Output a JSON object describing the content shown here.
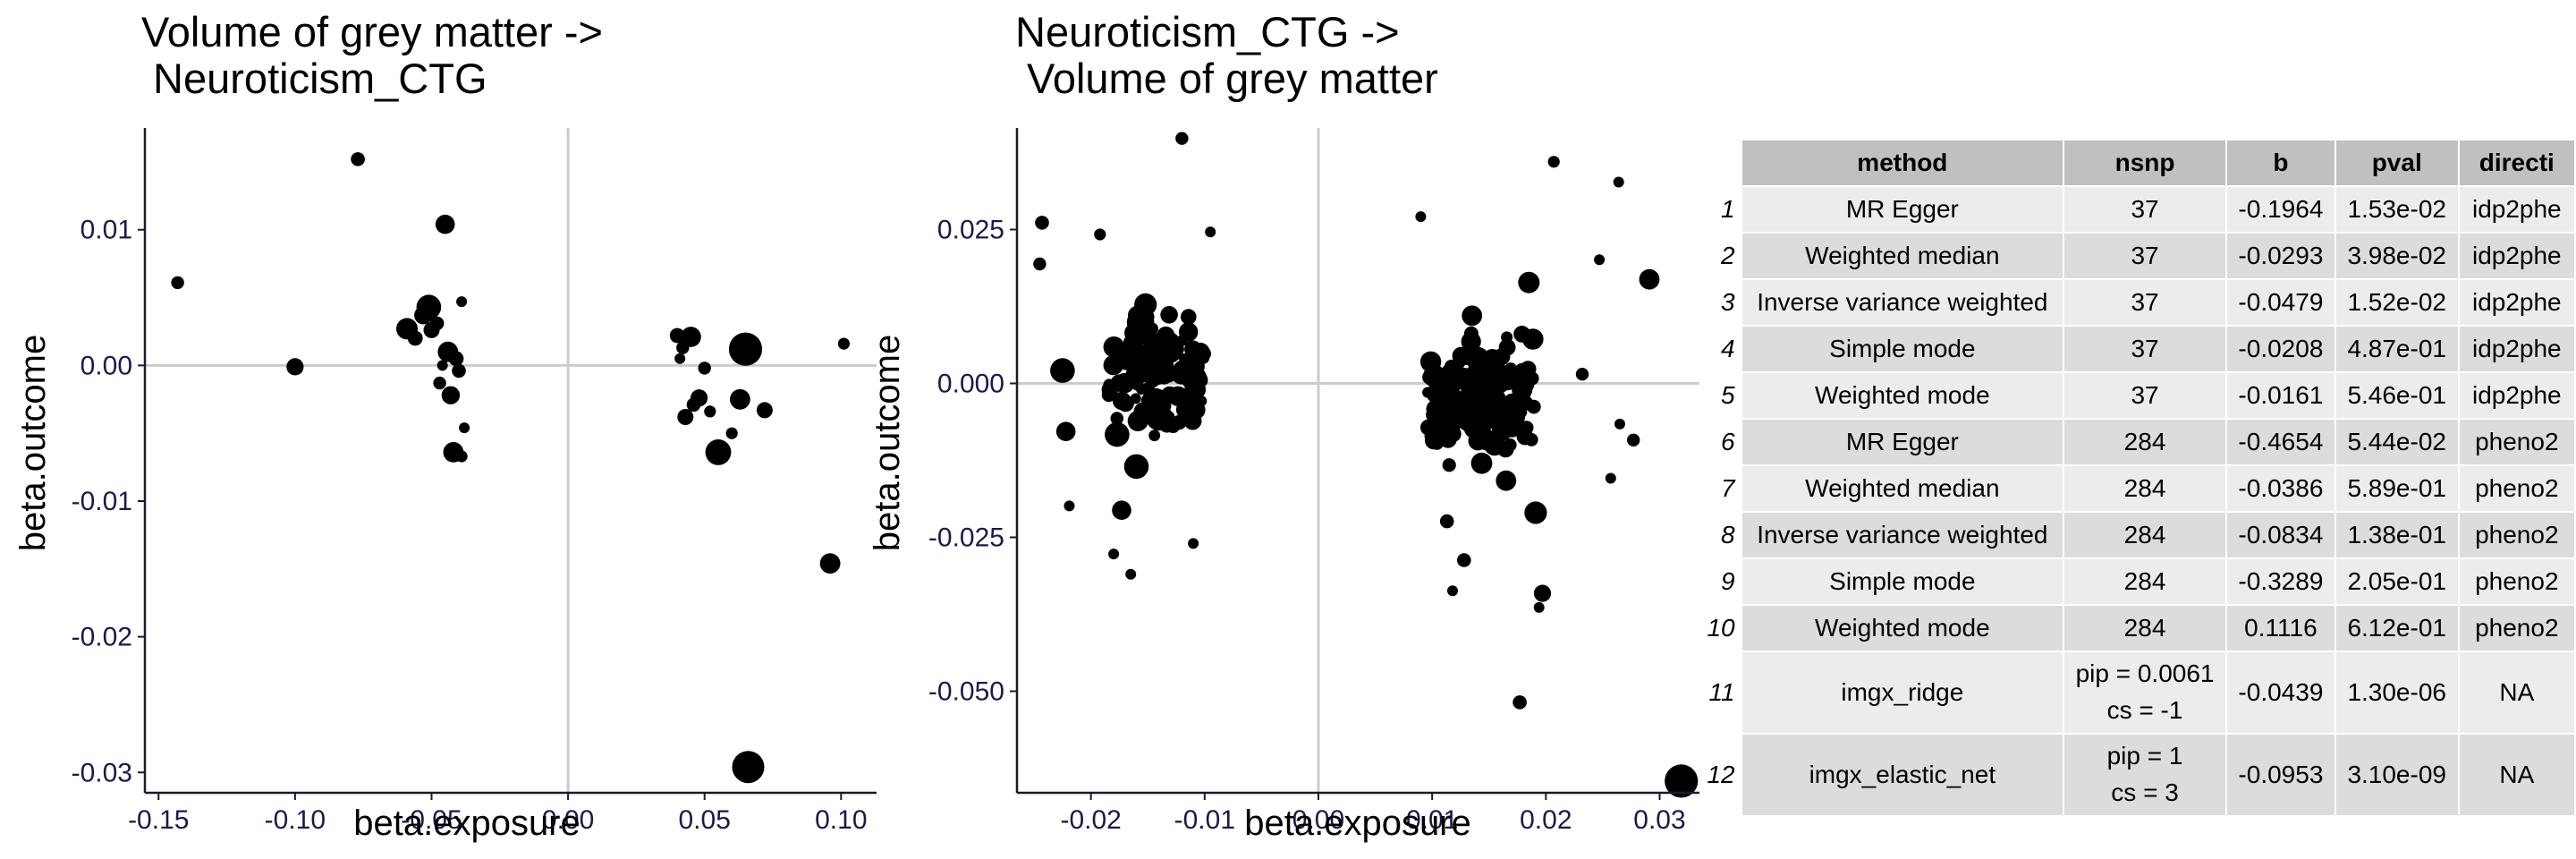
{
  "chart_data": [
    {
      "type": "scatter",
      "title_line1": "Volume of grey matter ->",
      "title_line2": " Neuroticism_CTG",
      "xlabel": "beta.exposure",
      "ylabel": "beta.outcome",
      "xlim": [
        -0.155,
        0.113
      ],
      "ylim": [
        -0.0315,
        0.0175
      ],
      "xticks": [
        -0.15,
        -0.1,
        -0.05,
        0.0,
        0.05,
        0.1
      ],
      "xtick_labels": [
        "-0.15",
        "-0.10",
        "-0.05",
        "0.00",
        "0.05",
        "0.10"
      ],
      "yticks": [
        0.01,
        0.0,
        -0.01,
        -0.02,
        -0.03
      ],
      "ytick_labels": [
        "0.01",
        "0.00",
        "-0.01",
        "-0.02",
        "-0.03"
      ],
      "reference_lines": {
        "x": 0,
        "y": 0
      },
      "point_size_meaning": "point size scales with precision",
      "points": [
        [
          -0.143,
          0.0061,
          1.2
        ],
        [
          -0.1,
          -0.0001,
          1.6
        ],
        [
          -0.077,
          0.0152,
          1.3
        ],
        [
          -0.059,
          0.0027,
          2.0
        ],
        [
          -0.056,
          0.002,
          1.4
        ],
        [
          -0.053,
          0.0037,
          1.7
        ],
        [
          -0.051,
          0.0043,
          2.3
        ],
        [
          -0.048,
          0.0031,
          1.3
        ],
        [
          -0.047,
          -0.0013,
          1.2
        ],
        [
          -0.045,
          0.0104,
          1.8
        ],
        [
          -0.044,
          0.001,
          1.9
        ],
        [
          -0.043,
          -0.0022,
          1.7
        ],
        [
          -0.042,
          -0.0064,
          1.9
        ],
        [
          -0.041,
          0.0005,
          1.4
        ],
        [
          -0.04,
          -0.0004,
          1.3
        ],
        [
          -0.039,
          -0.0067,
          1.1
        ],
        [
          -0.039,
          0.0047,
          1.0
        ],
        [
          -0.038,
          -0.0046,
          1.0
        ],
        [
          0.04,
          0.0022,
          1.4
        ],
        [
          0.042,
          0.0013,
          1.2
        ],
        [
          0.043,
          -0.0038,
          1.5
        ],
        [
          0.045,
          0.0021,
          1.9
        ],
        [
          0.046,
          -0.0029,
          1.3
        ],
        [
          0.048,
          -0.0024,
          1.6
        ],
        [
          0.05,
          -0.0002,
          1.2
        ],
        [
          0.052,
          -0.0034,
          1.1
        ],
        [
          0.055,
          -0.0064,
          2.4
        ],
        [
          0.06,
          -0.005,
          1.1
        ],
        [
          0.063,
          -0.0025,
          1.9
        ],
        [
          0.065,
          0.0012,
          3.1
        ],
        [
          0.066,
          -0.0296,
          3.0
        ],
        [
          0.072,
          -0.0033,
          1.5
        ],
        [
          0.096,
          -0.0146,
          1.9
        ],
        [
          0.101,
          0.0016,
          1.1
        ],
        [
          0.041,
          0.0005,
          1.0
        ],
        [
          -0.05,
          0.0026,
          1.5
        ],
        [
          -0.046,
          0.0,
          1.0
        ]
      ]
    },
    {
      "type": "scatter",
      "title_line1": "Neuroticism_CTG ->",
      "title_line2": " Volume of grey matter",
      "xlabel": "beta.exposure",
      "ylabel": "beta.outcome",
      "xlim": [
        -0.0265,
        0.0335
      ],
      "ylim": [
        -0.0665,
        0.0415
      ],
      "xticks": [
        -0.02,
        -0.01,
        0.0,
        0.01,
        0.02,
        0.03
      ],
      "xtick_labels": [
        "-0.02",
        "-0.01",
        "0.00",
        "0.01",
        "0.02",
        "0.03"
      ],
      "yticks": [
        0.025,
        0.0,
        -0.025,
        -0.05
      ],
      "ytick_labels": [
        "0.025",
        "0.000",
        "-0.025",
        "-0.050"
      ],
      "reference_lines": {
        "x": 0,
        "y": 0
      },
      "point_size_meaning": "point size scales with precision",
      "n_points": 284,
      "points": [
        [
          -0.0243,
          0.0261,
          1.3
        ],
        [
          -0.0245,
          0.0194,
          1.2
        ],
        [
          -0.0225,
          0.0021,
          2.3
        ],
        [
          -0.0219,
          -0.0199,
          1.0
        ],
        [
          -0.0222,
          -0.0078,
          1.8
        ],
        [
          -0.0192,
          0.0242,
          1.1
        ],
        [
          -0.0177,
          -0.0083,
          2.3
        ],
        [
          -0.018,
          -0.0277,
          1.0
        ],
        [
          -0.0165,
          -0.031,
          1.0
        ],
        [
          -0.012,
          0.0398,
          1.2
        ],
        [
          -0.011,
          -0.026,
          1.0
        ],
        [
          -0.0095,
          0.0246,
          1.0
        ],
        [
          -0.0143,
          -0.0027,
          2.2
        ],
        [
          -0.014,
          -0.0055,
          2.5
        ],
        [
          -0.016,
          -0.0135,
          2.3
        ],
        [
          -0.0173,
          -0.0206,
          1.8
        ],
        [
          -0.0152,
          0.0128,
          2.1
        ],
        [
          -0.0131,
          0.0066,
          2.0
        ],
        [
          0.0207,
          0.036,
          1.1
        ],
        [
          0.0264,
          0.0327,
          1.0
        ],
        [
          0.0247,
          0.0201,
          1.0
        ],
        [
          0.0291,
          0.0169,
          1.9
        ],
        [
          0.0319,
          -0.0646,
          3.1
        ],
        [
          0.0177,
          -0.0518,
          1.3
        ],
        [
          0.0197,
          -0.0341,
          1.6
        ],
        [
          0.0194,
          -0.0364,
          1.0
        ],
        [
          0.0191,
          -0.021,
          2.1
        ],
        [
          0.0257,
          -0.0154,
          1.0
        ],
        [
          0.0277,
          -0.0092,
          1.2
        ],
        [
          0.0265,
          -0.0066,
          1.0
        ],
        [
          0.0232,
          0.0015,
          1.2
        ],
        [
          0.017,
          -0.0053,
          2.5
        ],
        [
          0.014,
          0.004,
          2.2
        ],
        [
          0.0113,
          -0.0224,
          1.3
        ],
        [
          0.0128,
          -0.0287,
          1.3
        ],
        [
          0.0118,
          -0.0337,
          1.0
        ],
        [
          0.0185,
          0.0164,
          2.0
        ],
        [
          0.009,
          0.0271,
          1.0
        ],
        [
          0.0102,
          0.0012,
          2.1
        ],
        [
          0.0165,
          -0.0158,
          1.9
        ],
        [
          0.0135,
          0.011,
          1.9
        ],
        [
          0.0155,
          -0.01,
          2.0
        ]
      ]
    }
  ],
  "table": {
    "headers": [
      "method",
      "nsnp",
      "b",
      "pval",
      "directi"
    ],
    "rows": [
      {
        "num": "1",
        "method": "MR Egger",
        "nsnp": "37",
        "b": "-0.1964",
        "pval": "1.53e-02",
        "direction": "idp2phe"
      },
      {
        "num": "2",
        "method": "Weighted median",
        "nsnp": "37",
        "b": "-0.0293",
        "pval": "3.98e-02",
        "direction": "idp2phe"
      },
      {
        "num": "3",
        "method": "Inverse variance weighted",
        "nsnp": "37",
        "b": "-0.0479",
        "pval": "1.52e-02",
        "direction": "idp2phe"
      },
      {
        "num": "4",
        "method": "Simple mode",
        "nsnp": "37",
        "b": "-0.0208",
        "pval": "4.87e-01",
        "direction": "idp2phe"
      },
      {
        "num": "5",
        "method": "Weighted mode",
        "nsnp": "37",
        "b": "-0.0161",
        "pval": "5.46e-01",
        "direction": "idp2phe"
      },
      {
        "num": "6",
        "method": "MR Egger",
        "nsnp": "284",
        "b": "-0.4654",
        "pval": "5.44e-02",
        "direction": "pheno2"
      },
      {
        "num": "7",
        "method": "Weighted median",
        "nsnp": "284",
        "b": "-0.0386",
        "pval": "5.89e-01",
        "direction": "pheno2"
      },
      {
        "num": "8",
        "method": "Inverse variance weighted",
        "nsnp": "284",
        "b": "-0.0834",
        "pval": "1.38e-01",
        "direction": "pheno2"
      },
      {
        "num": "9",
        "method": "Simple mode",
        "nsnp": "284",
        "b": "-0.3289",
        "pval": "2.05e-01",
        "direction": "pheno2"
      },
      {
        "num": "10",
        "method": "Weighted mode",
        "nsnp": "284",
        "b": "0.1116",
        "pval": "6.12e-01",
        "direction": "pheno2"
      },
      {
        "num": "11",
        "method": "imgx_ridge",
        "nsnp_line1": "pip = 0.0061",
        "nsnp_line2": "cs = -1",
        "b": "-0.0439",
        "pval": "1.30e-06",
        "direction": "NA"
      },
      {
        "num": "12",
        "method": "imgx_elastic_net",
        "nsnp_line1": "pip = 1",
        "nsnp_line2": "cs = 3",
        "b": "-0.0953",
        "pval": "3.10e-09",
        "direction": "NA"
      }
    ]
  }
}
